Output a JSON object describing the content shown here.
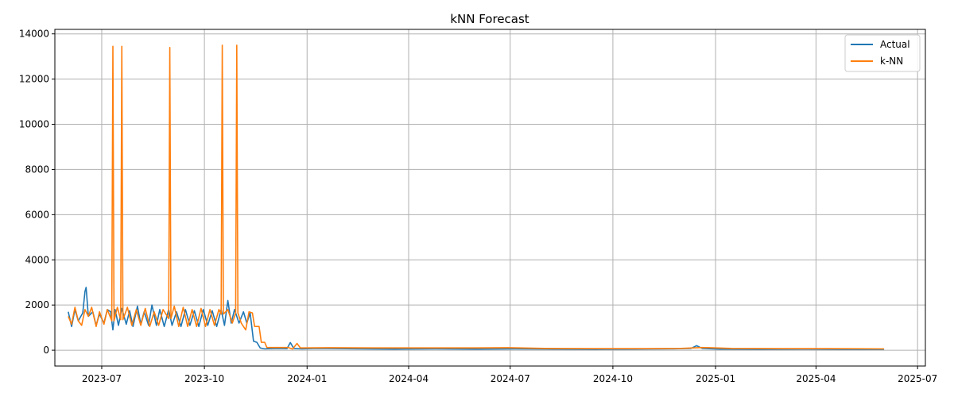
{
  "chart_data": {
    "type": "line",
    "title": "kNN Forecast",
    "xlabel": "",
    "ylabel": "",
    "x_range": [
      "2023-05-20",
      "2025-07-08"
    ],
    "ylim": [
      -700,
      14200
    ],
    "grid": true,
    "legend_position": "top-right",
    "x_ticks": [
      {
        "date": "2023-07-01",
        "label": "2023-07"
      },
      {
        "date": "2023-10-01",
        "label": "2023-10"
      },
      {
        "date": "2024-01-01",
        "label": "2024-01"
      },
      {
        "date": "2024-04-01",
        "label": "2024-04"
      },
      {
        "date": "2024-07-01",
        "label": "2024-07"
      },
      {
        "date": "2024-10-01",
        "label": "2024-10"
      },
      {
        "date": "2025-01-01",
        "label": "2025-01"
      },
      {
        "date": "2025-04-01",
        "label": "2025-04"
      },
      {
        "date": "2025-07-01",
        "label": "2025-07"
      }
    ],
    "y_ticks": [
      0,
      2000,
      4000,
      6000,
      8000,
      10000,
      12000,
      14000
    ],
    "series": [
      {
        "name": "Actual",
        "color": "#1f77b4",
        "points": [
          [
            "2023-06-01",
            1700
          ],
          [
            "2023-06-04",
            1050
          ],
          [
            "2023-06-07",
            1800
          ],
          [
            "2023-06-10",
            1300
          ],
          [
            "2023-06-14",
            1650
          ],
          [
            "2023-06-16",
            2600
          ],
          [
            "2023-06-17",
            2780
          ],
          [
            "2023-06-19",
            1500
          ],
          [
            "2023-06-23",
            1700
          ],
          [
            "2023-06-26",
            1100
          ],
          [
            "2023-06-29",
            1600
          ],
          [
            "2023-07-03",
            1200
          ],
          [
            "2023-07-06",
            1800
          ],
          [
            "2023-07-09",
            1700
          ],
          [
            "2023-07-11",
            900
          ],
          [
            "2023-07-13",
            1800
          ],
          [
            "2023-07-16",
            1100
          ],
          [
            "2023-07-19",
            1850
          ],
          [
            "2023-07-23",
            1150
          ],
          [
            "2023-07-26",
            1750
          ],
          [
            "2023-07-29",
            1050
          ],
          [
            "2023-08-02",
            1950
          ],
          [
            "2023-08-05",
            1150
          ],
          [
            "2023-08-08",
            1700
          ],
          [
            "2023-08-12",
            1100
          ],
          [
            "2023-08-15",
            2000
          ],
          [
            "2023-08-19",
            1100
          ],
          [
            "2023-08-22",
            1800
          ],
          [
            "2023-08-26",
            1050
          ],
          [
            "2023-08-30",
            1800
          ],
          [
            "2023-09-02",
            1100
          ],
          [
            "2023-09-06",
            1700
          ],
          [
            "2023-09-10",
            1050
          ],
          [
            "2023-09-14",
            1800
          ],
          [
            "2023-09-18",
            1100
          ],
          [
            "2023-09-22",
            1750
          ],
          [
            "2023-09-26",
            1050
          ],
          [
            "2023-09-30",
            1800
          ],
          [
            "2023-10-04",
            1100
          ],
          [
            "2023-10-08",
            1750
          ],
          [
            "2023-10-12",
            1050
          ],
          [
            "2023-10-16",
            1800
          ],
          [
            "2023-10-19",
            1100
          ],
          [
            "2023-10-22",
            2200
          ],
          [
            "2023-10-25",
            1200
          ],
          [
            "2023-10-28",
            1800
          ],
          [
            "2023-11-01",
            1200
          ],
          [
            "2023-11-05",
            1700
          ],
          [
            "2023-11-08",
            1200
          ],
          [
            "2023-11-11",
            1650
          ],
          [
            "2023-11-14",
            400
          ],
          [
            "2023-11-17",
            350
          ],
          [
            "2023-11-20",
            100
          ],
          [
            "2023-11-24",
            60
          ],
          [
            "2023-12-05",
            80
          ],
          [
            "2023-12-14",
            70
          ],
          [
            "2023-12-17",
            340
          ],
          [
            "2023-12-20",
            80
          ],
          [
            "2023-12-27",
            60
          ],
          [
            "2024-01-10",
            80
          ],
          [
            "2024-02-15",
            60
          ],
          [
            "2024-03-20",
            50
          ],
          [
            "2024-04-25",
            60
          ],
          [
            "2024-06-01",
            50
          ],
          [
            "2024-07-05",
            60
          ],
          [
            "2024-08-10",
            50
          ],
          [
            "2024-09-15",
            40
          ],
          [
            "2024-10-20",
            50
          ],
          [
            "2024-11-25",
            60
          ],
          [
            "2024-12-10",
            80
          ],
          [
            "2024-12-15",
            200
          ],
          [
            "2024-12-20",
            80
          ],
          [
            "2025-01-05",
            50
          ],
          [
            "2025-02-10",
            40
          ],
          [
            "2025-03-20",
            50
          ],
          [
            "2025-04-25",
            40
          ],
          [
            "2025-06-01",
            40
          ]
        ]
      },
      {
        "name": "k-NN",
        "color": "#ff7f0e",
        "points": [
          [
            "2023-06-01",
            1500
          ],
          [
            "2023-06-04",
            1150
          ],
          [
            "2023-06-07",
            1900
          ],
          [
            "2023-06-10",
            1300
          ],
          [
            "2023-06-13",
            1100
          ],
          [
            "2023-06-16",
            1800
          ],
          [
            "2023-06-19",
            1500
          ],
          [
            "2023-06-22",
            1900
          ],
          [
            "2023-06-26",
            1050
          ],
          [
            "2023-06-29",
            1700
          ],
          [
            "2023-07-03",
            1150
          ],
          [
            "2023-07-06",
            1800
          ],
          [
            "2023-07-10",
            1300
          ],
          [
            "2023-07-11",
            13450
          ],
          [
            "2023-07-12",
            1300
          ],
          [
            "2023-07-15",
            1900
          ],
          [
            "2023-07-18",
            1350
          ],
          [
            "2023-07-19",
            13450
          ],
          [
            "2023-07-20",
            1350
          ],
          [
            "2023-07-24",
            1900
          ],
          [
            "2023-07-28",
            1100
          ],
          [
            "2023-08-01",
            1800
          ],
          [
            "2023-08-05",
            1100
          ],
          [
            "2023-08-09",
            1850
          ],
          [
            "2023-08-13",
            1050
          ],
          [
            "2023-08-17",
            1700
          ],
          [
            "2023-08-21",
            1100
          ],
          [
            "2023-08-25",
            1800
          ],
          [
            "2023-08-30",
            1400
          ],
          [
            "2023-08-31",
            13400
          ],
          [
            "2023-09-01",
            1400
          ],
          [
            "2023-09-04",
            1950
          ],
          [
            "2023-09-08",
            1050
          ],
          [
            "2023-09-12",
            1900
          ],
          [
            "2023-09-16",
            1050
          ],
          [
            "2023-09-20",
            1800
          ],
          [
            "2023-09-24",
            1050
          ],
          [
            "2023-09-28",
            1850
          ],
          [
            "2023-10-02",
            1050
          ],
          [
            "2023-10-06",
            1800
          ],
          [
            "2023-10-10",
            1100
          ],
          [
            "2023-10-14",
            1800
          ],
          [
            "2023-10-16",
            1600
          ],
          [
            "2023-10-17",
            13500
          ],
          [
            "2023-10-18",
            1600
          ],
          [
            "2023-10-22",
            1800
          ],
          [
            "2023-10-26",
            1200
          ],
          [
            "2023-10-29",
            1650
          ],
          [
            "2023-10-30",
            13500
          ],
          [
            "2023-10-31",
            1650
          ],
          [
            "2023-11-03",
            1200
          ],
          [
            "2023-11-07",
            900
          ],
          [
            "2023-11-10",
            1700
          ],
          [
            "2023-11-13",
            1650
          ],
          [
            "2023-11-15",
            1050
          ],
          [
            "2023-11-19",
            1050
          ],
          [
            "2023-11-21",
            350
          ],
          [
            "2023-11-24",
            350
          ],
          [
            "2023-11-26",
            120
          ],
          [
            "2023-12-10",
            120
          ],
          [
            "2023-12-15",
            120
          ],
          [
            "2023-12-19",
            50
          ],
          [
            "2023-12-23",
            300
          ],
          [
            "2023-12-26",
            100
          ],
          [
            "2024-01-20",
            110
          ],
          [
            "2024-03-01",
            100
          ],
          [
            "2024-04-15",
            100
          ],
          [
            "2024-05-30",
            100
          ],
          [
            "2024-06-30",
            110
          ],
          [
            "2024-08-01",
            80
          ],
          [
            "2024-09-15",
            70
          ],
          [
            "2024-10-30",
            70
          ],
          [
            "2024-12-01",
            80
          ],
          [
            "2024-12-20",
            120
          ],
          [
            "2025-01-15",
            80
          ],
          [
            "2025-03-01",
            70
          ],
          [
            "2025-04-15",
            70
          ],
          [
            "2025-06-01",
            60
          ]
        ]
      }
    ]
  }
}
